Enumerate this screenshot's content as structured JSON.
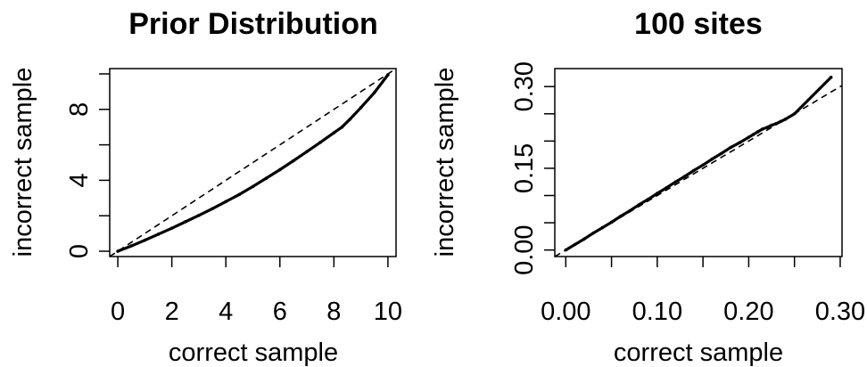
{
  "chart_data": [
    {
      "type": "scatter",
      "title": "Prior Distribution",
      "xlabel": "correct sample",
      "ylabel": "incorrect sample",
      "xlim": [
        -0.3,
        10.3
      ],
      "ylim": [
        -0.3,
        10.3
      ],
      "x_ticks": [
        0,
        2,
        4,
        6,
        8,
        10
      ],
      "x_tick_labels": [
        "0",
        "2",
        "4",
        "6",
        "8",
        "10"
      ],
      "y_ticks": [
        0,
        2,
        4,
        6,
        8,
        10
      ],
      "y_tick_labels": [
        "0",
        "",
        "4",
        "",
        "8",
        ""
      ],
      "grid": false,
      "reference_line": {
        "style": "dashed",
        "slope": 1,
        "intercept": 0
      },
      "series": [
        {
          "x": [
            0,
            0.5,
            1,
            1.5,
            2,
            2.5,
            3,
            3.5,
            4,
            4.5,
            5,
            5.5,
            6,
            6.5,
            7,
            7.5,
            8,
            8.3,
            8.6,
            9,
            9.5,
            10
          ],
          "y": [
            0,
            0.3,
            0.62,
            0.96,
            1.3,
            1.66,
            2.02,
            2.4,
            2.8,
            3.2,
            3.65,
            4.12,
            4.6,
            5.1,
            5.62,
            6.14,
            6.68,
            7.0,
            7.45,
            8.1,
            8.95,
            9.95
          ]
        }
      ]
    },
    {
      "type": "scatter",
      "title": "100 sites",
      "xlabel": "correct sample",
      "ylabel": "incorrect sample",
      "xlim": [
        -0.012,
        0.302
      ],
      "ylim": [
        -0.012,
        0.333
      ],
      "x_ticks": [
        0,
        0.05,
        0.1,
        0.15,
        0.2,
        0.25,
        0.3
      ],
      "x_tick_labels": [
        "0.00",
        "",
        "0.10",
        "",
        "0.20",
        "",
        "0.30"
      ],
      "y_ticks": [
        0,
        0.05,
        0.1,
        0.15,
        0.2,
        0.25,
        0.3
      ],
      "y_tick_labels": [
        "0.00",
        "",
        "",
        "0.15",
        "",
        "",
        "0.30"
      ],
      "grid": false,
      "reference_line": {
        "style": "dashed",
        "slope": 1,
        "intercept": 0
      },
      "series": [
        {
          "x": [
            0,
            0.01,
            0.02,
            0.03,
            0.04,
            0.05,
            0.06,
            0.07,
            0.08,
            0.09,
            0.1,
            0.11,
            0.12,
            0.13,
            0.14,
            0.15,
            0.16,
            0.17,
            0.18,
            0.19,
            0.2,
            0.205,
            0.21,
            0.215,
            0.22,
            0.225,
            0.23,
            0.235,
            0.24,
            0.25,
            0.29
          ],
          "y": [
            0,
            0.01,
            0.02,
            0.031,
            0.041,
            0.051,
            0.062,
            0.072,
            0.083,
            0.093,
            0.104,
            0.114,
            0.125,
            0.135,
            0.146,
            0.156,
            0.167,
            0.177,
            0.188,
            0.197,
            0.207,
            0.212,
            0.217,
            0.222,
            0.225,
            0.229,
            0.232,
            0.236,
            0.24,
            0.25,
            0.317
          ]
        }
      ]
    }
  ]
}
